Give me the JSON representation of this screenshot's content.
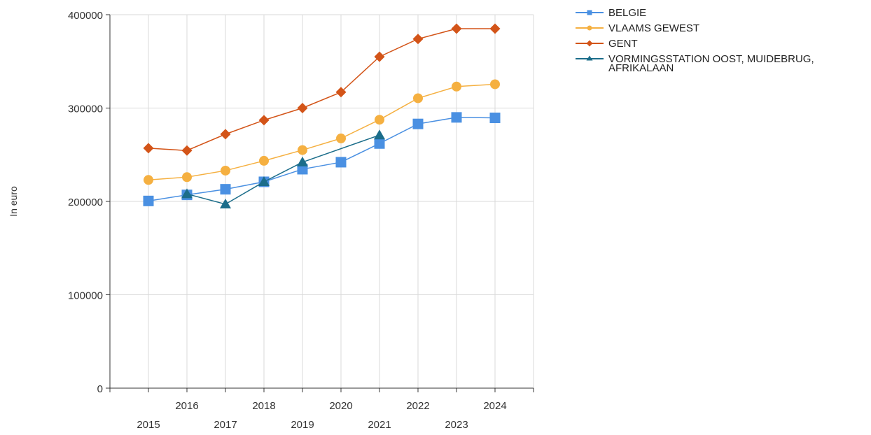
{
  "chart_data": {
    "type": "line",
    "title": "",
    "xlabel": "",
    "ylabel": "In euro",
    "x": [
      "2015",
      "2016",
      "2017",
      "2018",
      "2019",
      "2020",
      "2021",
      "2022",
      "2023",
      "2024"
    ],
    "ylim": [
      0,
      400000
    ],
    "yticks": [
      "0",
      "100000",
      "200000",
      "300000",
      "400000"
    ],
    "grid": true,
    "legend_position": "top-right",
    "series": [
      {
        "name": "BELGIE",
        "color": "#4a90e2",
        "marker": "square",
        "values": [
          200500,
          207000,
          213000,
          221000,
          234500,
          242000,
          262000,
          283000,
          290000,
          289500
        ]
      },
      {
        "name": "VLAAMS GEWEST",
        "color": "#f5b041",
        "marker": "circle",
        "values": [
          223000,
          226000,
          233000,
          243500,
          255000,
          267500,
          287500,
          310500,
          323000,
          325500
        ]
      },
      {
        "name": "GENT",
        "color": "#d35418",
        "marker": "diamond",
        "values": [
          257000,
          254500,
          272000,
          287000,
          300000,
          317000,
          355000,
          374000,
          385000,
          385000
        ]
      },
      {
        "name": "VORMINGSSTATION OOST, MUIDEBRUG, AFRIKALAAN",
        "color": "#1b6d8a",
        "marker": "triangle",
        "legend_lines": [
          "VORMINGSSTATION OOST, MUIDEBRUG,",
          "AFRIKALAAN"
        ],
        "values": [
          null,
          208000,
          197000,
          221000,
          242000,
          null,
          271000,
          null,
          null,
          null
        ]
      }
    ]
  }
}
